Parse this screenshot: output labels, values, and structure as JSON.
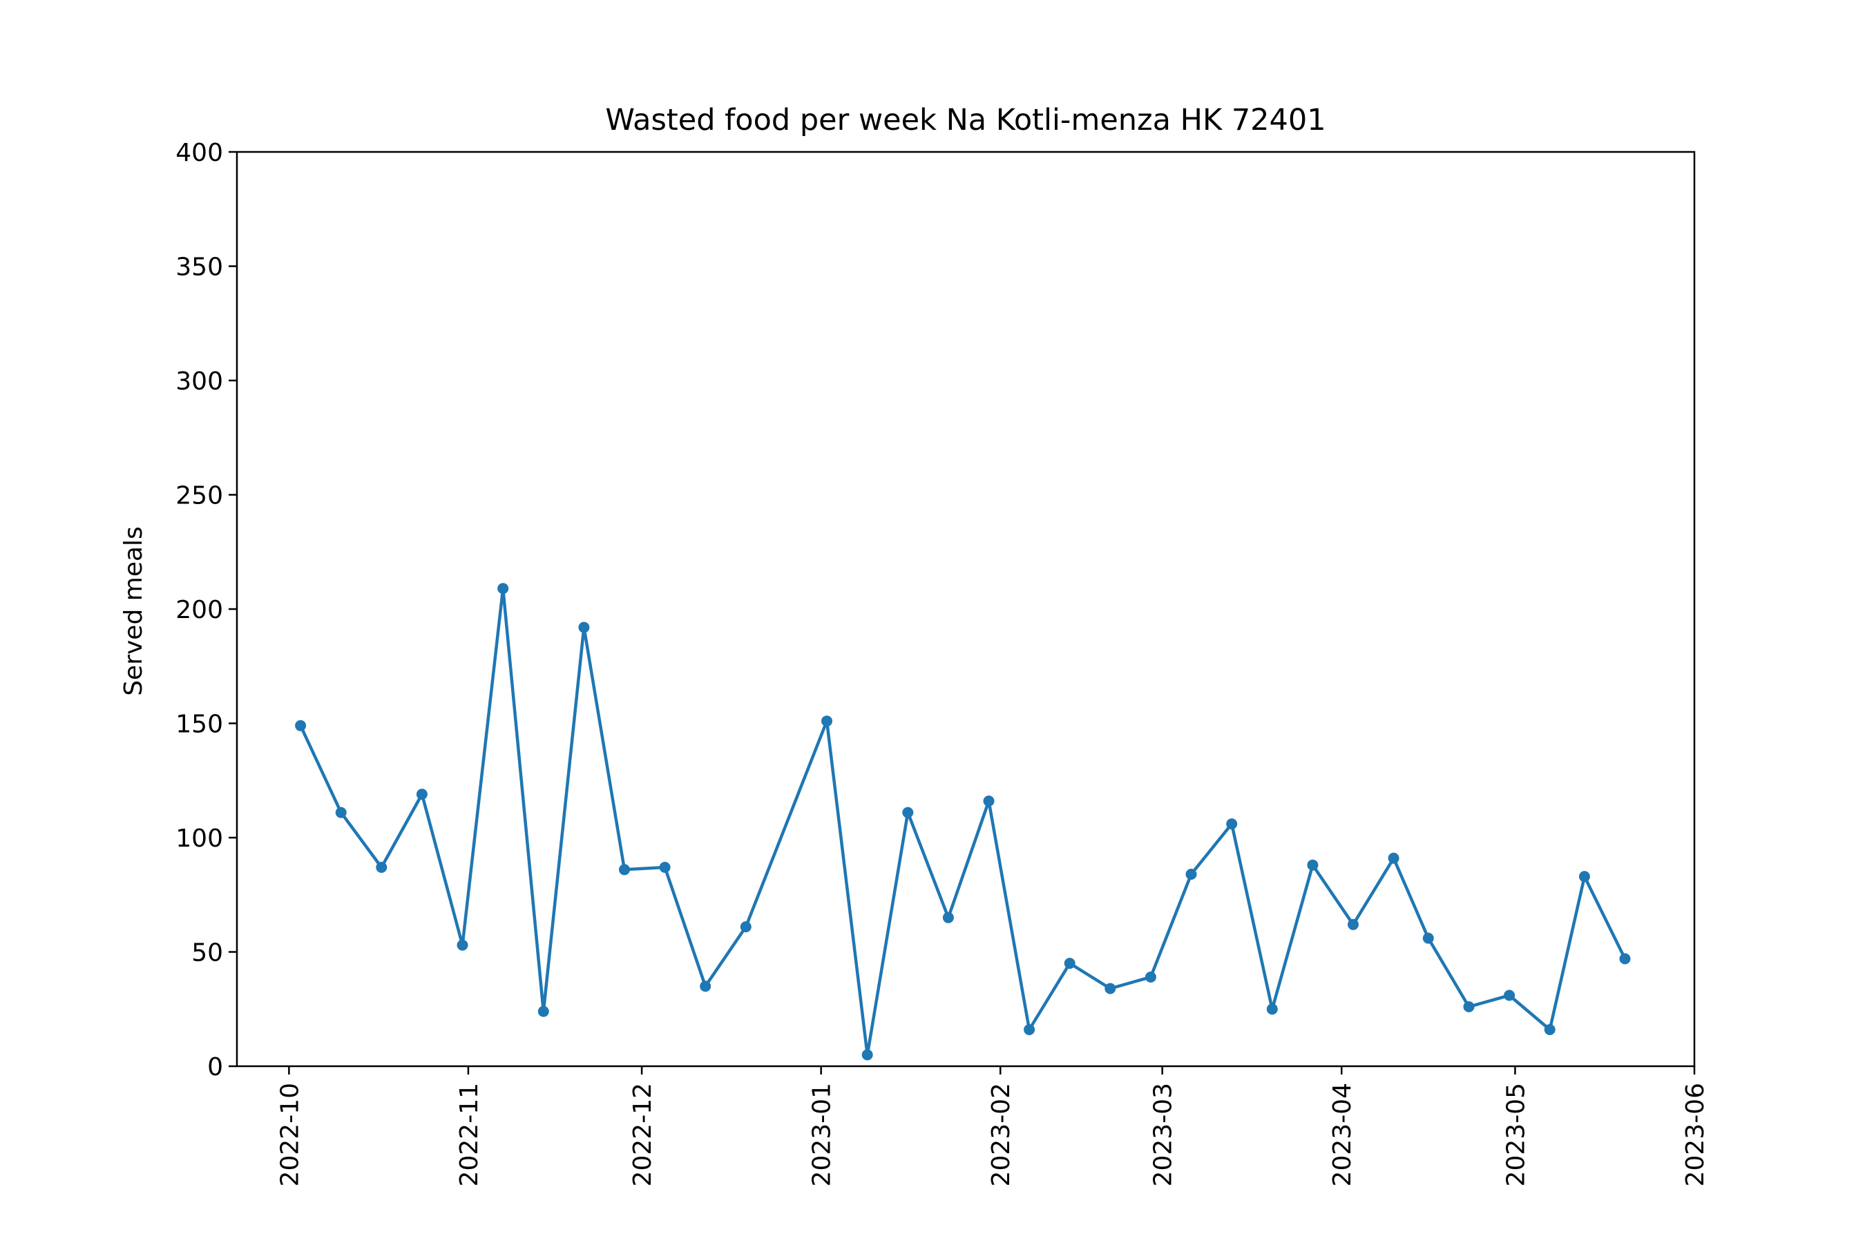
{
  "chart_data": {
    "type": "line",
    "title": "Wasted food per week Na Kotli-menza HK 72401",
    "xlabel": "",
    "ylabel": "Served meals",
    "ylim": [
      0,
      400
    ],
    "xlim": [
      "2022-09-22",
      "2023-06-01"
    ],
    "yticks": [
      0,
      50,
      100,
      150,
      200,
      250,
      300,
      350,
      400
    ],
    "xticks": [
      "2022-10-01",
      "2022-11-01",
      "2022-12-01",
      "2023-01-01",
      "2023-02-01",
      "2023-03-01",
      "2023-04-01",
      "2023-05-01",
      "2023-06-01"
    ],
    "xtick_labels": [
      "2022-10",
      "2022-11",
      "2022-12",
      "2023-01",
      "2023-02",
      "2023-03",
      "2023-04",
      "2023-05",
      "2023-06"
    ],
    "grid": false,
    "series": [
      {
        "color": "#1f77b4",
        "marker": "circle",
        "points": [
          {
            "x": "2022-10-03",
            "y": 149
          },
          {
            "x": "2022-10-10",
            "y": 111
          },
          {
            "x": "2022-10-17",
            "y": 87
          },
          {
            "x": "2022-10-24",
            "y": 119
          },
          {
            "x": "2022-10-31",
            "y": 53
          },
          {
            "x": "2022-11-07",
            "y": 209
          },
          {
            "x": "2022-11-14",
            "y": 24
          },
          {
            "x": "2022-11-21",
            "y": 192
          },
          {
            "x": "2022-11-28",
            "y": 86
          },
          {
            "x": "2022-12-05",
            "y": 87
          },
          {
            "x": "2022-12-12",
            "y": 35
          },
          {
            "x": "2022-12-19",
            "y": 61
          },
          {
            "x": "2023-01-02",
            "y": 151
          },
          {
            "x": "2023-01-09",
            "y": 5
          },
          {
            "x": "2023-01-16",
            "y": 111
          },
          {
            "x": "2023-01-23",
            "y": 65
          },
          {
            "x": "2023-01-30",
            "y": 116
          },
          {
            "x": "2023-02-06",
            "y": 16
          },
          {
            "x": "2023-02-13",
            "y": 45
          },
          {
            "x": "2023-02-20",
            "y": 34
          },
          {
            "x": "2023-02-27",
            "y": 39
          },
          {
            "x": "2023-03-06",
            "y": 84
          },
          {
            "x": "2023-03-13",
            "y": 106
          },
          {
            "x": "2023-03-20",
            "y": 25
          },
          {
            "x": "2023-03-27",
            "y": 88
          },
          {
            "x": "2023-04-03",
            "y": 62
          },
          {
            "x": "2023-04-10",
            "y": 91
          },
          {
            "x": "2023-04-16",
            "y": 56
          },
          {
            "x": "2023-04-23",
            "y": 26
          },
          {
            "x": "2023-04-30",
            "y": 31
          },
          {
            "x": "2023-05-07",
            "y": 16
          },
          {
            "x": "2023-05-13",
            "y": 83
          },
          {
            "x": "2023-05-20",
            "y": 47
          }
        ]
      }
    ]
  }
}
